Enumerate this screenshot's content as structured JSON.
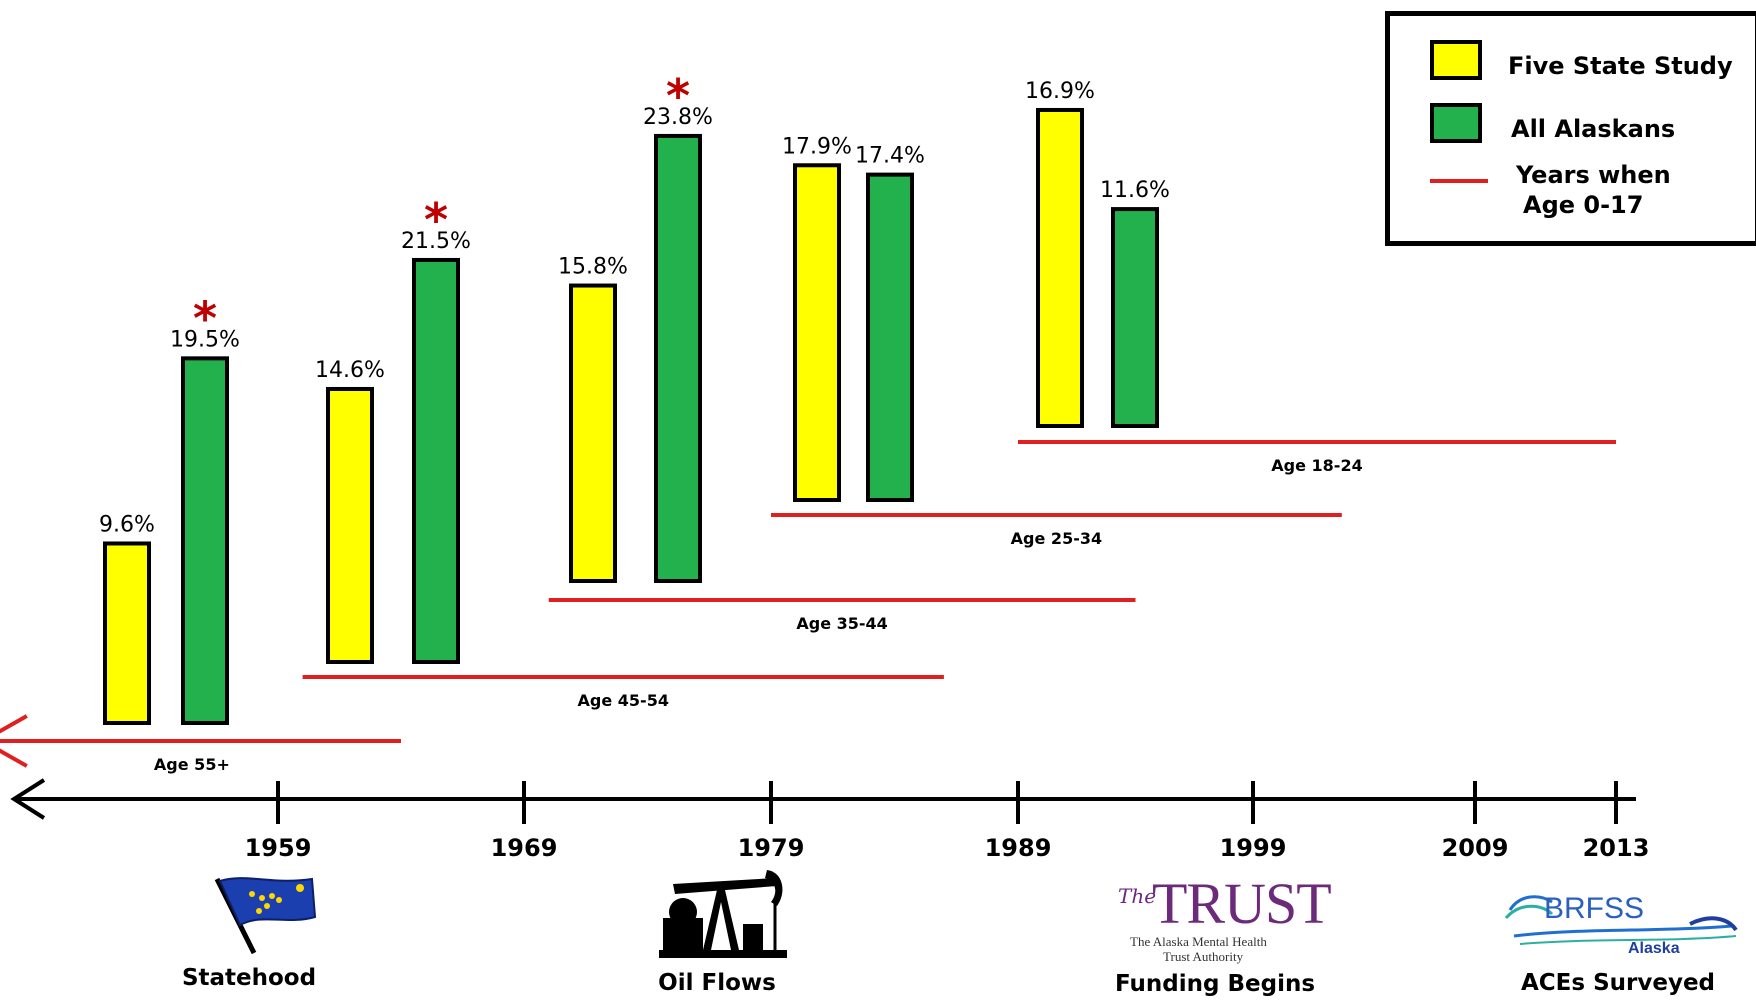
{
  "chart_data": {
    "type": "bar",
    "series": [
      {
        "name": "Five State Study",
        "color": "#ffff00"
      },
      {
        "name": "All Alaskans",
        "color": "#22b14c"
      }
    ],
    "groups": [
      {
        "age_label": "Age 55+",
        "child_years": [
          1947,
          1964
        ],
        "arrow_left": true,
        "five_state": 9.6,
        "five_state_label": "9.6%",
        "all_alaskans": 19.5,
        "all_alaskans_label": "19.5%",
        "significant": true
      },
      {
        "age_label": "Age 45-54",
        "child_years": [
          1960,
          1986
        ],
        "five_state": 14.6,
        "five_state_label": "14.6%",
        "all_alaskans": 21.5,
        "all_alaskans_label": "21.5%",
        "significant": true
      },
      {
        "age_label": "Age 35-44",
        "child_years": [
          1970,
          1994
        ],
        "five_state": 15.8,
        "five_state_label": "15.8%",
        "all_alaskans": 23.8,
        "all_alaskans_label": "23.8%",
        "significant": true
      },
      {
        "age_label": "Age 25-34",
        "child_years": [
          1979,
          2003
        ],
        "five_state": 17.9,
        "five_state_label": "17.9%",
        "all_alaskans": 17.4,
        "all_alaskans_label": "17.4%",
        "significant": false
      },
      {
        "age_label": "Age 18-24",
        "child_years": [
          1989,
          2013
        ],
        "five_state": 16.9,
        "five_state_label": "16.9%",
        "all_alaskans": 11.6,
        "all_alaskans_label": "11.6%",
        "significant": false
      }
    ],
    "significance_marker": "*",
    "timeline": {
      "ticks": [
        {
          "year": 1959,
          "label": "1959"
        },
        {
          "year": 1969,
          "label": "1969"
        },
        {
          "year": 1979,
          "label": "1979"
        },
        {
          "year": 1989,
          "label": "1989"
        },
        {
          "year": 1999,
          "label": "1999"
        },
        {
          "year": 2009,
          "label": "2009"
        },
        {
          "year": 2013,
          "label": "2013"
        }
      ]
    },
    "legend": {
      "five_state": "Five State Study",
      "all_alaskans": "All Alaskans",
      "years_line_1": "Years when",
      "years_line_2": "Age 0-17"
    },
    "events": [
      {
        "label": "Statehood",
        "icon": "alaska-flag-icon"
      },
      {
        "label": "Oil Flows",
        "icon": "oil-pump-icon"
      },
      {
        "label": "Funding Begins",
        "icon": "trust-logo-icon"
      },
      {
        "label": "ACEs Surveyed",
        "icon": "brfss-logo-icon"
      }
    ],
    "logos": {
      "trust_the": "The",
      "trust_main": "TRUST",
      "trust_sub1": "The Alaska Mental Health",
      "trust_sub2": "Trust Authority",
      "brfss_main": "BRFSS",
      "brfss_sub": "Alaska"
    },
    "colors": {
      "five_state": "#ffff00",
      "all_alaskans": "#22b14c",
      "age_line": "#e02020",
      "asterisk": "#c00000"
    }
  }
}
